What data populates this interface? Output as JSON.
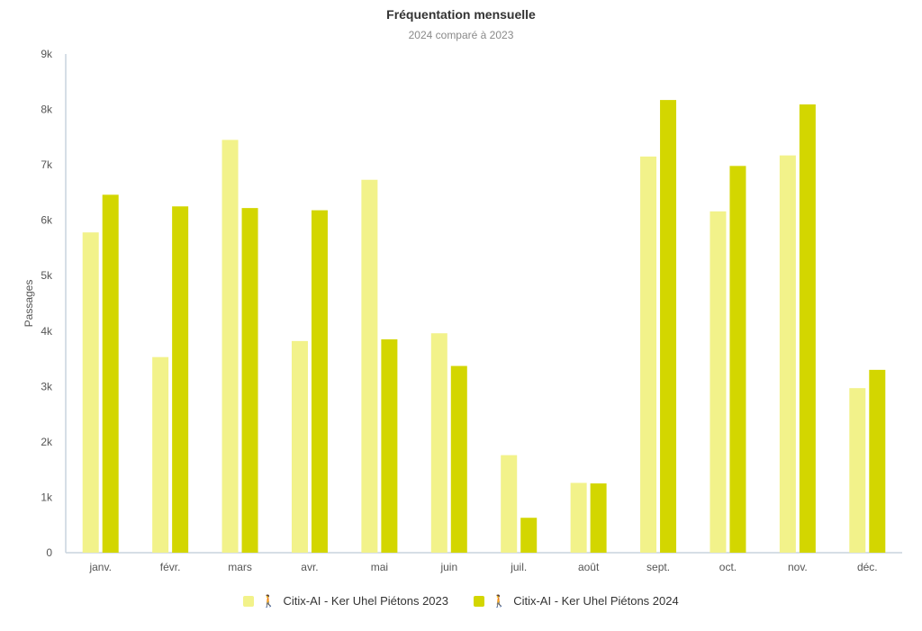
{
  "chart_data": {
    "type": "bar",
    "title": "Fréquentation mensuelle",
    "subtitle": "2024 comparé à 2023",
    "ylabel": "Passages",
    "xlabel": "",
    "categories": [
      "janv.",
      "févr.",
      "mars",
      "avr.",
      "mai",
      "juin",
      "juil.",
      "août",
      "sept.",
      "oct.",
      "nov.",
      "déc."
    ],
    "ylim": [
      0,
      9000
    ],
    "yticks": [
      {
        "value": 0,
        "label": "0"
      },
      {
        "value": 1000,
        "label": "1k"
      },
      {
        "value": 2000,
        "label": "2k"
      },
      {
        "value": 3000,
        "label": "3k"
      },
      {
        "value": 4000,
        "label": "4k"
      },
      {
        "value": 5000,
        "label": "5k"
      },
      {
        "value": 6000,
        "label": "6k"
      },
      {
        "value": 7000,
        "label": "7k"
      },
      {
        "value": 8000,
        "label": "8k"
      },
      {
        "value": 9000,
        "label": "9k"
      }
    ],
    "grid": false,
    "legend_position": "bottom-center",
    "series": [
      {
        "name": "Citix-AI - Ker Uhel Piétons 2023",
        "color": "#f2f28a",
        "icon": "pedestrian-icon",
        "values": [
          5780,
          3530,
          7450,
          3820,
          6730,
          3960,
          1760,
          1260,
          7150,
          6160,
          7170,
          2970
        ]
      },
      {
        "name": "Citix-AI - Ker Uhel Piétons 2024",
        "color": "#d3d600",
        "icon": "pedestrian-icon",
        "values": [
          6460,
          6250,
          6220,
          6180,
          3850,
          3370,
          630,
          1250,
          8170,
          6980,
          8090,
          3300
        ]
      }
    ]
  }
}
